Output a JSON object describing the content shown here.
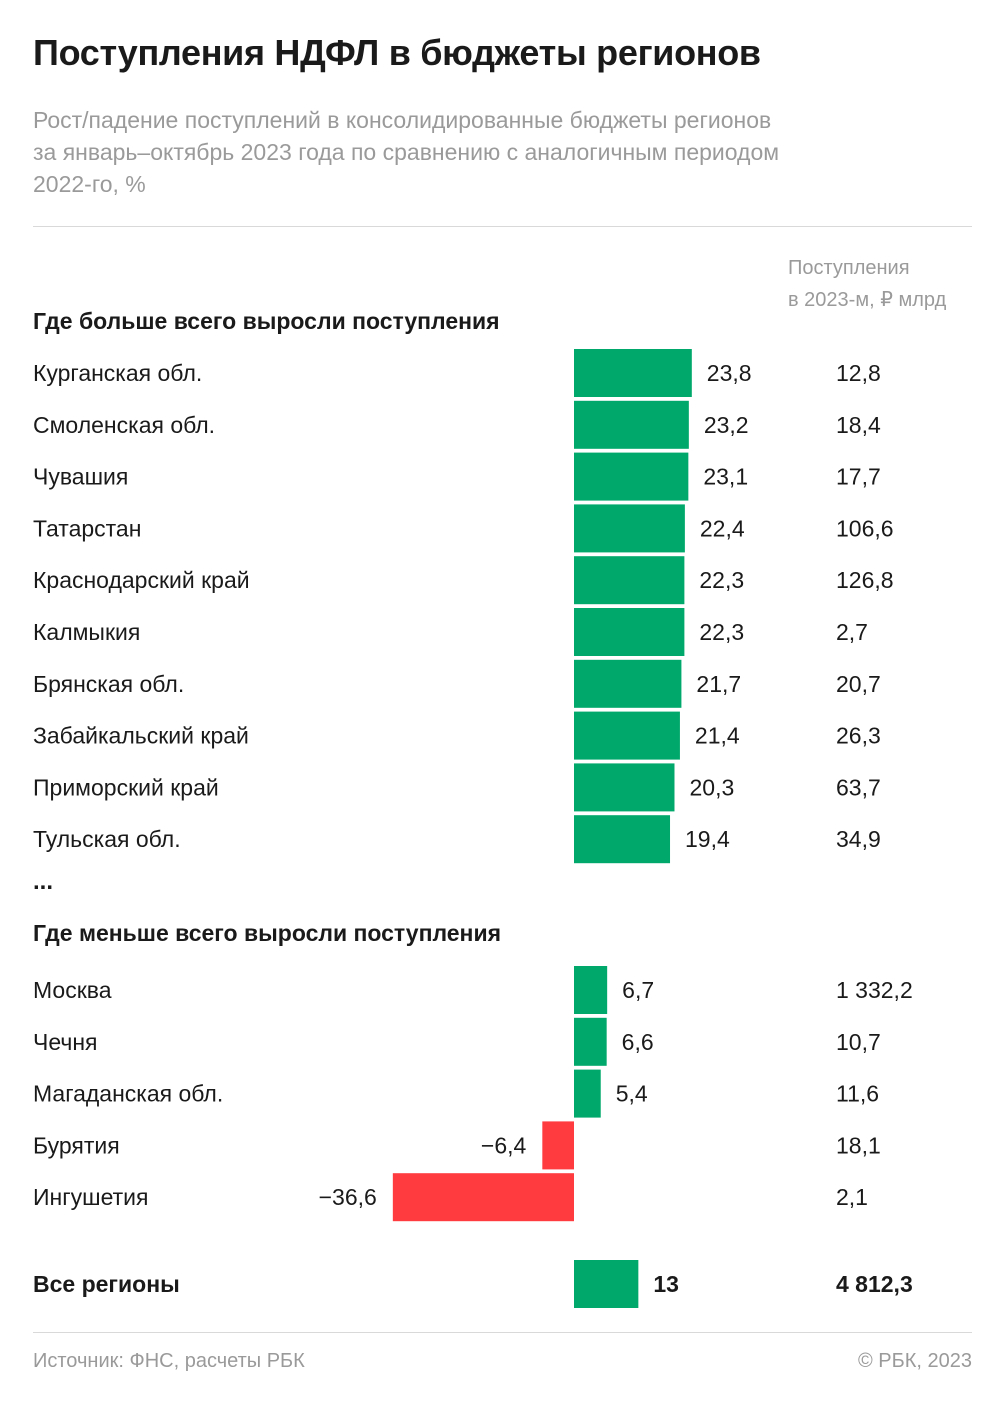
{
  "header": {
    "title": "Поступления НДФЛ в бюджеты регионов",
    "subtitle_lines": [
      "Рост/падение поступлений в консолидированные бюджеты регионов",
      "за январь–октябрь 2023 года по сравнению с аналогичным периодом",
      "2022-го, %"
    ]
  },
  "column_header": {
    "line1": "Поступления",
    "line2": "в 2023-м, ₽ млрд"
  },
  "sections": {
    "top": "Где больше всего выросли поступления",
    "ellipsis": "...",
    "bottom": "Где меньше всего выросли поступления"
  },
  "colors": {
    "positive": "#00a86b",
    "negative": "#ff3b3f",
    "text": "#1a1a1a",
    "muted": "#9a9a9a"
  },
  "chart_data": {
    "type": "bar",
    "orientation": "horizontal",
    "unit": "%",
    "secondary_unit": "₽ млрд",
    "groups": [
      {
        "section": "top",
        "rows": [
          {
            "region": "Курганская обл.",
            "change": 23.8,
            "change_label": "23,8",
            "revenue": 12.8,
            "revenue_label": "12,8"
          },
          {
            "region": "Смоленская обл.",
            "change": 23.2,
            "change_label": "23,2",
            "revenue": 18.4,
            "revenue_label": "18,4"
          },
          {
            "region": "Чувашия",
            "change": 23.1,
            "change_label": "23,1",
            "revenue": 17.7,
            "revenue_label": "17,7"
          },
          {
            "region": "Татарстан",
            "change": 22.4,
            "change_label": "22,4",
            "revenue": 106.6,
            "revenue_label": "106,6"
          },
          {
            "region": "Краснодарский край",
            "change": 22.3,
            "change_label": "22,3",
            "revenue": 126.8,
            "revenue_label": "126,8"
          },
          {
            "region": "Калмыкия",
            "change": 22.3,
            "change_label": "22,3",
            "revenue": 2.7,
            "revenue_label": "2,7"
          },
          {
            "region": "Брянская обл.",
            "change": 21.7,
            "change_label": "21,7",
            "revenue": 20.7,
            "revenue_label": "20,7"
          },
          {
            "region": "Забайкальский край",
            "change": 21.4,
            "change_label": "21,4",
            "revenue": 26.3,
            "revenue_label": "26,3"
          },
          {
            "region": "Приморский край",
            "change": 20.3,
            "change_label": "20,3",
            "revenue": 63.7,
            "revenue_label": "63,7"
          },
          {
            "region": "Тульская обл.",
            "change": 19.4,
            "change_label": "19,4",
            "revenue": 34.9,
            "revenue_label": "34,9"
          }
        ]
      },
      {
        "section": "bottom",
        "rows": [
          {
            "region": "Москва",
            "change": 6.7,
            "change_label": "6,7",
            "revenue": 1332.2,
            "revenue_label": "1 332,2"
          },
          {
            "region": "Чечня",
            "change": 6.6,
            "change_label": "6,6",
            "revenue": 10.7,
            "revenue_label": "10,7"
          },
          {
            "region": "Магаданская обл.",
            "change": 5.4,
            "change_label": "5,4",
            "revenue": 11.6,
            "revenue_label": "11,6"
          },
          {
            "region": "Бурятия",
            "change": -6.4,
            "change_label": "−6,4",
            "revenue": 18.1,
            "revenue_label": "18,1"
          },
          {
            "region": "Ингушетия",
            "change": -36.6,
            "change_label": "−36,6",
            "revenue": 2.1,
            "revenue_label": "2,1"
          }
        ]
      },
      {
        "section": "total",
        "rows": [
          {
            "region": "Все регионы",
            "change": 13,
            "change_label": "13",
            "revenue": 4812.3,
            "revenue_label": "4 812,3"
          }
        ]
      }
    ]
  },
  "footer": {
    "source": "Источник: ФНС, расчеты РБК",
    "copyright": "© РБК, 2023"
  }
}
